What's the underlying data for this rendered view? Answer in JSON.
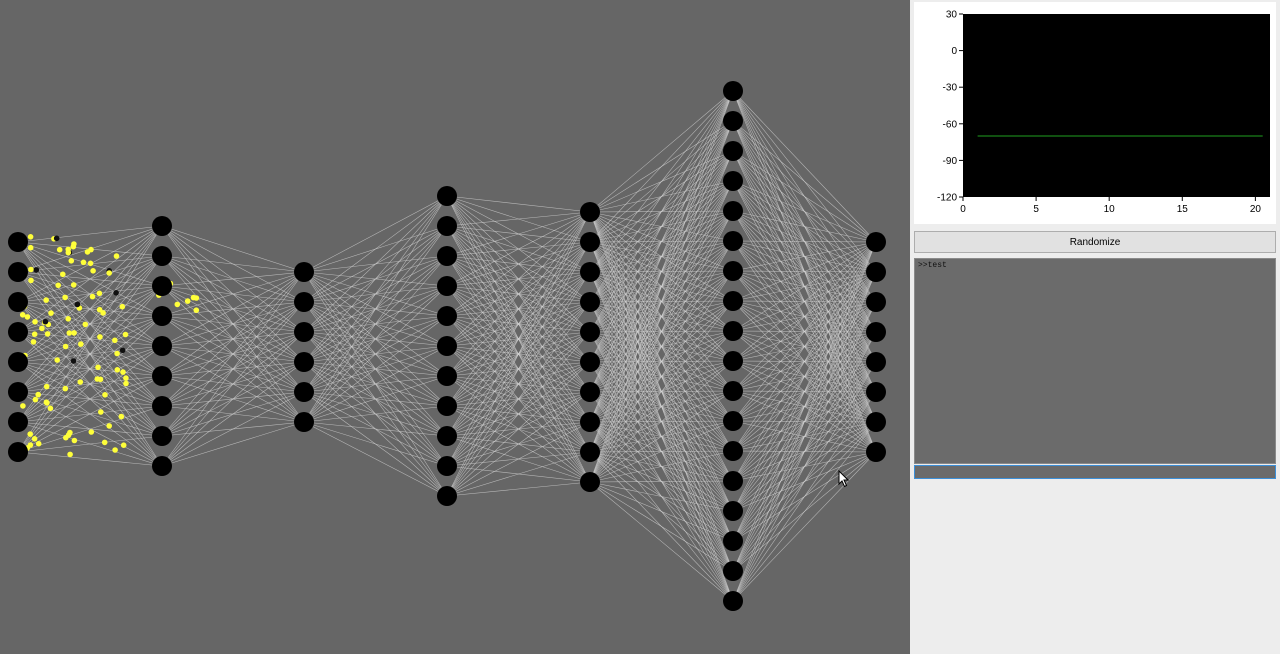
{
  "network": {
    "layers": [
      8,
      9,
      6,
      11,
      10,
      18,
      8
    ],
    "node_color": "#000000",
    "connection_color": "#d6d6d6",
    "particle_color": "#ffff3a",
    "background": "#666666"
  },
  "chart_data": {
    "type": "line",
    "title": "",
    "xlabel": "",
    "ylabel": "",
    "xlim": [
      0,
      21
    ],
    "ylim": [
      -120,
      30
    ],
    "x_ticks": [
      "0",
      "5",
      "10",
      "15",
      "20"
    ],
    "y_ticks": [
      "30",
      "0",
      "-30",
      "-60",
      "-90",
      "-120"
    ],
    "x_tick_values": [
      0,
      5,
      10,
      15,
      20
    ],
    "y_tick_values": [
      30,
      0,
      -30,
      -60,
      -90,
      -120
    ],
    "series": [
      {
        "x": [
          1,
          20.5
        ],
        "values": [
          -70,
          -70
        ],
        "color": "#1fa01f"
      }
    ],
    "plot_background": "#000000",
    "grid": false
  },
  "controls": {
    "randomize_label": "Randomize",
    "console_text": ">>test",
    "console_input_value": ""
  }
}
